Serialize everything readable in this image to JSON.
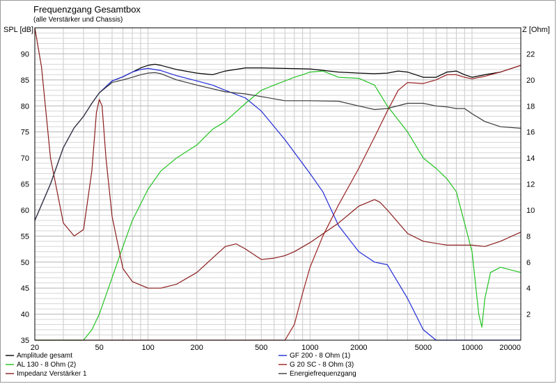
{
  "chart_data": {
    "type": "line",
    "title": "Frequenzgang Gesamtbox",
    "subtitle": "(alle Verstärker und Chassis)",
    "ylabel": "SPL [dB]",
    "y2label": "Z [Ohm]",
    "xscale": "log",
    "xlim": [
      20,
      20000
    ],
    "ylim": [
      35,
      95
    ],
    "y2lim": [
      0,
      24
    ],
    "grid": true,
    "legend_position": "bottom",
    "xticks": [
      "20",
      "50",
      "100",
      "200",
      "500",
      "1000",
      "2000",
      "5000",
      "10000",
      "20000"
    ],
    "yticks": [
      "90",
      "85",
      "80",
      "75",
      "70",
      "65",
      "60",
      "55",
      "50",
      "45",
      "40",
      "35"
    ],
    "y2ticks": [
      "22",
      "20",
      "18",
      "16",
      "14",
      "12",
      "10",
      "8",
      "6",
      "4",
      "2"
    ],
    "series": [
      {
        "name": "Amplitude gesamt",
        "axis": "left",
        "color": "#000000",
        "x": [
          20,
          25,
          30,
          35,
          40,
          45,
          50,
          60,
          70,
          80,
          90,
          100,
          110,
          120,
          150,
          200,
          250,
          300,
          400,
          500,
          700,
          1000,
          1500,
          2000,
          2500,
          3000,
          3500,
          4000,
          5000,
          6000,
          7000,
          8000,
          9000,
          10000,
          12000,
          15000,
          20000
        ],
        "y": [
          58,
          65,
          72,
          75.8,
          78,
          80.5,
          82.5,
          84.8,
          85.6,
          86.5,
          87.3,
          87.8,
          88,
          87.8,
          87,
          86.3,
          86,
          86.7,
          87.3,
          87.3,
          87.2,
          87.1,
          86.5,
          86.3,
          86.2,
          86.3,
          86.7,
          86.5,
          85.5,
          85.5,
          86.5,
          86.7,
          86,
          85.5,
          86,
          86.5,
          87.8
        ]
      },
      {
        "name": "GF 200 - 8 Ohm (1)",
        "axis": "left",
        "color": "#1f2ad6",
        "x": [
          20,
          25,
          30,
          35,
          40,
          45,
          50,
          60,
          70,
          80,
          90,
          100,
          120,
          150,
          200,
          250,
          300,
          400,
          500,
          700,
          1000,
          1200,
          1500,
          2000,
          2500,
          3000,
          4000,
          5000,
          6000,
          20000
        ],
        "y": [
          58,
          65,
          72,
          75.8,
          78,
          80.5,
          82.5,
          84.8,
          85.6,
          86.5,
          87,
          87.2,
          86.8,
          85.8,
          84.8,
          84,
          83,
          81.5,
          79,
          73.5,
          67,
          63.5,
          57,
          52,
          50,
          49.5,
          43,
          37,
          35,
          35
        ]
      },
      {
        "name": "AL 130 - 8 Ohm (2)",
        "axis": "left",
        "color": "#22c322",
        "x": [
          20,
          40,
          45,
          50,
          60,
          70,
          80,
          100,
          120,
          150,
          200,
          250,
          300,
          400,
          500,
          600,
          700,
          800,
          900,
          1000,
          1200,
          1500,
          2000,
          2500,
          3000,
          4000,
          5000,
          6000,
          7000,
          8000,
          10000,
          11000,
          11500,
          12000,
          13000,
          15000,
          20000
        ],
        "y": [
          35,
          35,
          37,
          40,
          47,
          53,
          58,
          64,
          67.5,
          70,
          72.5,
          75.5,
          77,
          80.5,
          83,
          84,
          84.8,
          85.5,
          86,
          86.5,
          86.7,
          85.5,
          85.3,
          84,
          80,
          75,
          70,
          68,
          66,
          63.5,
          52,
          40,
          37.5,
          43,
          48,
          49,
          48
        ]
      },
      {
        "name": "G 20 SC - 8 Ohm (3)",
        "axis": "left",
        "color": "#9a2020",
        "x": [
          20,
          700,
          800,
          900,
          1000,
          1200,
          1500,
          2000,
          2500,
          3000,
          3500,
          4000,
          5000,
          6000,
          7000,
          8000,
          9000,
          10000,
          12000,
          15000,
          20000
        ],
        "y": [
          35,
          35,
          38,
          44,
          49,
          55,
          61,
          68,
          74,
          79,
          83,
          84.5,
          84.3,
          85,
          86,
          86,
          85.5,
          85.2,
          85.7,
          86.5,
          87.8
        ]
      },
      {
        "name": "Impedanz Verstärker 1",
        "axis": "right",
        "color": "#8b1c1c",
        "x": [
          20,
          22,
          25,
          30,
          35,
          40,
          45,
          48,
          50,
          52,
          55,
          60,
          70,
          80,
          100,
          120,
          150,
          200,
          250,
          300,
          350,
          400,
          500,
          600,
          700,
          800,
          1000,
          1500,
          2000,
          2500,
          2700,
          3000,
          4000,
          5000,
          7000,
          10000,
          12000,
          15000,
          20000
        ],
        "y": [
          24,
          21,
          14,
          9,
          8,
          8.5,
          13,
          17.5,
          18.5,
          18,
          14,
          9.5,
          5.5,
          4.5,
          4,
          4,
          4.3,
          5.2,
          6.3,
          7.2,
          7.4,
          7,
          6.2,
          6.3,
          6.5,
          6.8,
          7.5,
          9,
          10.3,
          10.8,
          10.6,
          10,
          8.2,
          7.6,
          7.3,
          7.3,
          7.2,
          7.6,
          8.3
        ]
      },
      {
        "name": "Energiefrequenzgang",
        "axis": "left",
        "color": "#3a3a3a",
        "x": [
          20,
          25,
          30,
          35,
          40,
          45,
          50,
          60,
          70,
          80,
          90,
          100,
          110,
          120,
          150,
          200,
          300,
          400,
          500,
          700,
          1000,
          1500,
          2000,
          2500,
          3000,
          4000,
          5000,
          6000,
          7000,
          8000,
          9000,
          10000,
          12000,
          15000,
          20000
        ],
        "y": [
          58,
          65,
          72,
          75.8,
          78,
          80.5,
          82.5,
          84.5,
          85,
          85.5,
          86,
          86.3,
          86.4,
          86.2,
          85,
          84,
          82.7,
          82.3,
          81.8,
          81,
          81,
          80.9,
          80,
          79.3,
          79.5,
          80.5,
          80.5,
          80,
          79.8,
          79.5,
          79.5,
          78.5,
          77,
          76,
          75.7
        ]
      }
    ]
  }
}
